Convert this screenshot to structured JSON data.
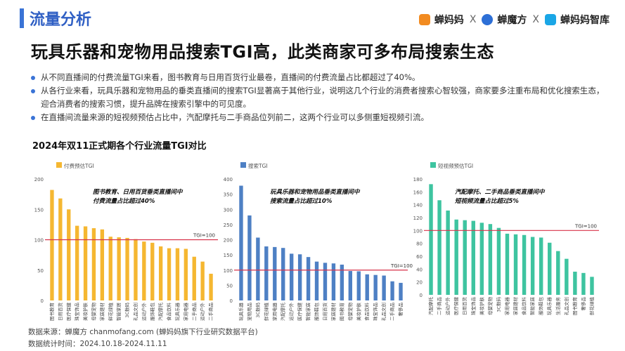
{
  "header": {
    "section_title": "流量分析"
  },
  "logos": {
    "brand1": "蝉妈妈",
    "sep1": "X",
    "brand2": "蝉魔方",
    "sep2": "X",
    "brand3": "蝉妈妈智库"
  },
  "main_title": "玩具乐器和宠物用品搜索TGI高，此类商家可多布局搜索生态",
  "bullets": [
    "从不同直播间的付费流量TGI来看，图书教育与日用百货行业最卷，直播间的付费流量占比都超过了40%。",
    "从各行业来看，玩具乐器和宠物用品的垂类直播间的搜索TGI显著高于其他行业，说明这几个行业的消费者搜索心智较强，商家要多注重布局和优化搜索生态，迎合消费者的搜索习惯，提升品牌在搜索引擎中的可见度。",
    "在直播间流量来源的短视频预估占比中，汽配摩托与二手商品位列前二，这两个行业可以多侧重短视频引流。"
  ],
  "chart_section_title": "2024年双11正式期各个行业流量TGI对比",
  "footer": {
    "source": "数据来源：蝉魔方 chanmofang.com   (蝉妈妈旗下行业研究数据平台)",
    "period": "数据统计时间：2024.10.18-2024.11.11"
  },
  "chart_data": [
    {
      "type": "bar",
      "legend": "付费预估TGI",
      "color": "#f5b731",
      "ylim": [
        0,
        200
      ],
      "yticks": [
        0,
        50,
        100,
        150,
        200
      ],
      "reference": {
        "value": 100,
        "label": "TGI=100"
      },
      "annotation": [
        "图书教育、日用百货垂类直播间中",
        "付费流量占比超过40%"
      ],
      "categories": [
        "图书教育",
        "日用百货",
        "医疗保健",
        "珠宝饰品",
        "美妆护肤",
        "母婴宠物",
        "家居建材",
        "鲜花绿植",
        "智能家居",
        "3C数码",
        "礼品文创",
        "运动户外",
        "服饰鞋包",
        "汽配摩托",
        "食品饮料",
        "玩具乐器",
        "家用电器",
        "二手商品",
        "运动户外",
        "二手商品"
      ],
      "values": [
        182,
        168,
        150,
        123,
        122,
        119,
        117,
        105,
        104,
        103,
        101,
        97,
        95,
        89,
        86,
        86,
        85,
        72,
        64,
        44
      ]
    },
    {
      "type": "bar",
      "legend": "搜索TGI",
      "color": "#4e80c4",
      "ylim": [
        0,
        400
      ],
      "yticks": [
        0,
        50,
        100,
        150,
        200,
        250,
        300,
        350,
        400
      ],
      "reference": {
        "value": 100,
        "label": "TGI=100"
      },
      "annotation": [
        "玩具乐器和宠物用品垂类直播间中",
        "搜索流量占比超过10%"
      ],
      "categories": [
        "玩具乐器",
        "宠物用品",
        "3C数码",
        "鲜花绿植",
        "家用电器",
        "汽配摩托",
        "运动户外",
        "医疗保健",
        "智能家居",
        "服饰鞋包",
        "日用百货",
        "家居建材",
        "图书教育",
        "母婴宠物",
        "美妆护肤",
        "食品饮料",
        "珠宝饰品",
        "礼品文创",
        "二手商品",
        "奢侈品"
      ],
      "values": [
        378,
        280,
        207,
        178,
        176,
        173,
        154,
        152,
        143,
        128,
        124,
        122,
        118,
        97,
        96,
        86,
        84,
        82,
        63,
        58
      ]
    },
    {
      "type": "bar",
      "legend": "短视频预估TGI",
      "color": "#3ec4a0",
      "ylim": [
        0,
        180
      ],
      "yticks": [
        0,
        20,
        40,
        60,
        80,
        100,
        120,
        140,
        160,
        180
      ],
      "reference": {
        "value": 100,
        "label": "TGI=100"
      },
      "annotation": [
        "汽配摩托、二手商品垂类直播间中",
        "短视频流量占比超过5%"
      ],
      "categories": [
        "汽配摩托",
        "二手商品",
        "运动户外",
        "医疗保健",
        "日用百货",
        "珠宝饰品",
        "美妆护肤",
        "母婴宠物",
        "3C数码",
        "家用电器",
        "家居建材",
        "食品饮料",
        "智能家居",
        "服饰鞋包",
        "玩具乐器",
        "生活服务",
        "礼品文创",
        "图书教育",
        "奢侈品",
        "鲜花绿植"
      ],
      "values": [
        172,
        147,
        131,
        117,
        116,
        115,
        112,
        110,
        104,
        95,
        94,
        93,
        90,
        89,
        81,
        68,
        56,
        36,
        34,
        28
      ]
    }
  ]
}
